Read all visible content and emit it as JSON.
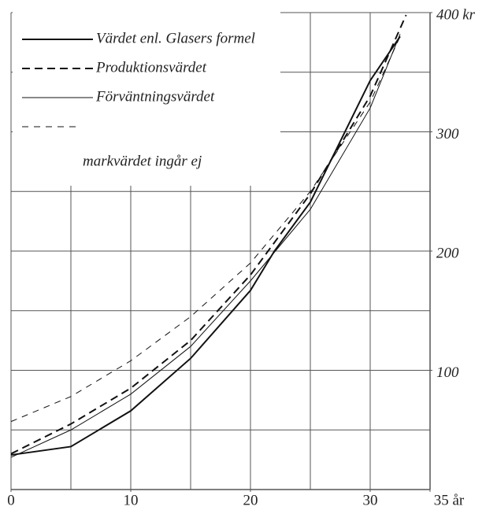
{
  "chart_data": {
    "type": "line",
    "xlim": [
      0,
      35
    ],
    "ylim": [
      0,
      400
    ],
    "xticks": [
      0,
      10,
      20,
      30,
      {
        "value": 35,
        "label": "35 år"
      }
    ],
    "yticks": [
      100,
      200,
      300,
      {
        "value": 400,
        "label": "400 kr"
      }
    ],
    "xgrid": [
      0,
      5,
      10,
      15,
      20,
      25,
      30,
      35
    ],
    "ygrid": [
      0,
      50,
      100,
      150,
      200,
      250,
      300,
      350,
      400
    ],
    "series": [
      {
        "name": "Värdet enl. Glasers formel",
        "color": "#111",
        "style": "solid",
        "width": 2,
        "x": [
          0,
          5,
          10,
          15,
          20,
          22,
          25,
          30,
          32.5
        ],
        "values": [
          29,
          36,
          66,
          110,
          167,
          200,
          241,
          343,
          380
        ]
      },
      {
        "name": "Produktionsvärdet",
        "color": "#111",
        "style": "dashed",
        "width": 2,
        "x": [
          0,
          5,
          10,
          15,
          20,
          25,
          30,
          33
        ],
        "values": [
          30,
          55,
          85,
          125,
          180,
          248,
          330,
          398
        ]
      },
      {
        "name": "Förväntningsvärdet",
        "color": "#111",
        "style": "solid",
        "width": 1,
        "x": [
          0,
          5,
          10,
          15,
          20,
          25,
          30,
          32.5
        ],
        "values": [
          27,
          50,
          80,
          120,
          175,
          235,
          320,
          382
        ]
      },
      {
        "name": "markvärdet ingår ej",
        "color": "#111",
        "style": "dashed",
        "width": 1,
        "x": [
          0,
          5,
          10,
          15,
          20,
          25,
          30,
          32.5
        ],
        "values": [
          57,
          78,
          108,
          145,
          190,
          250,
          325,
          380
        ]
      }
    ]
  }
}
